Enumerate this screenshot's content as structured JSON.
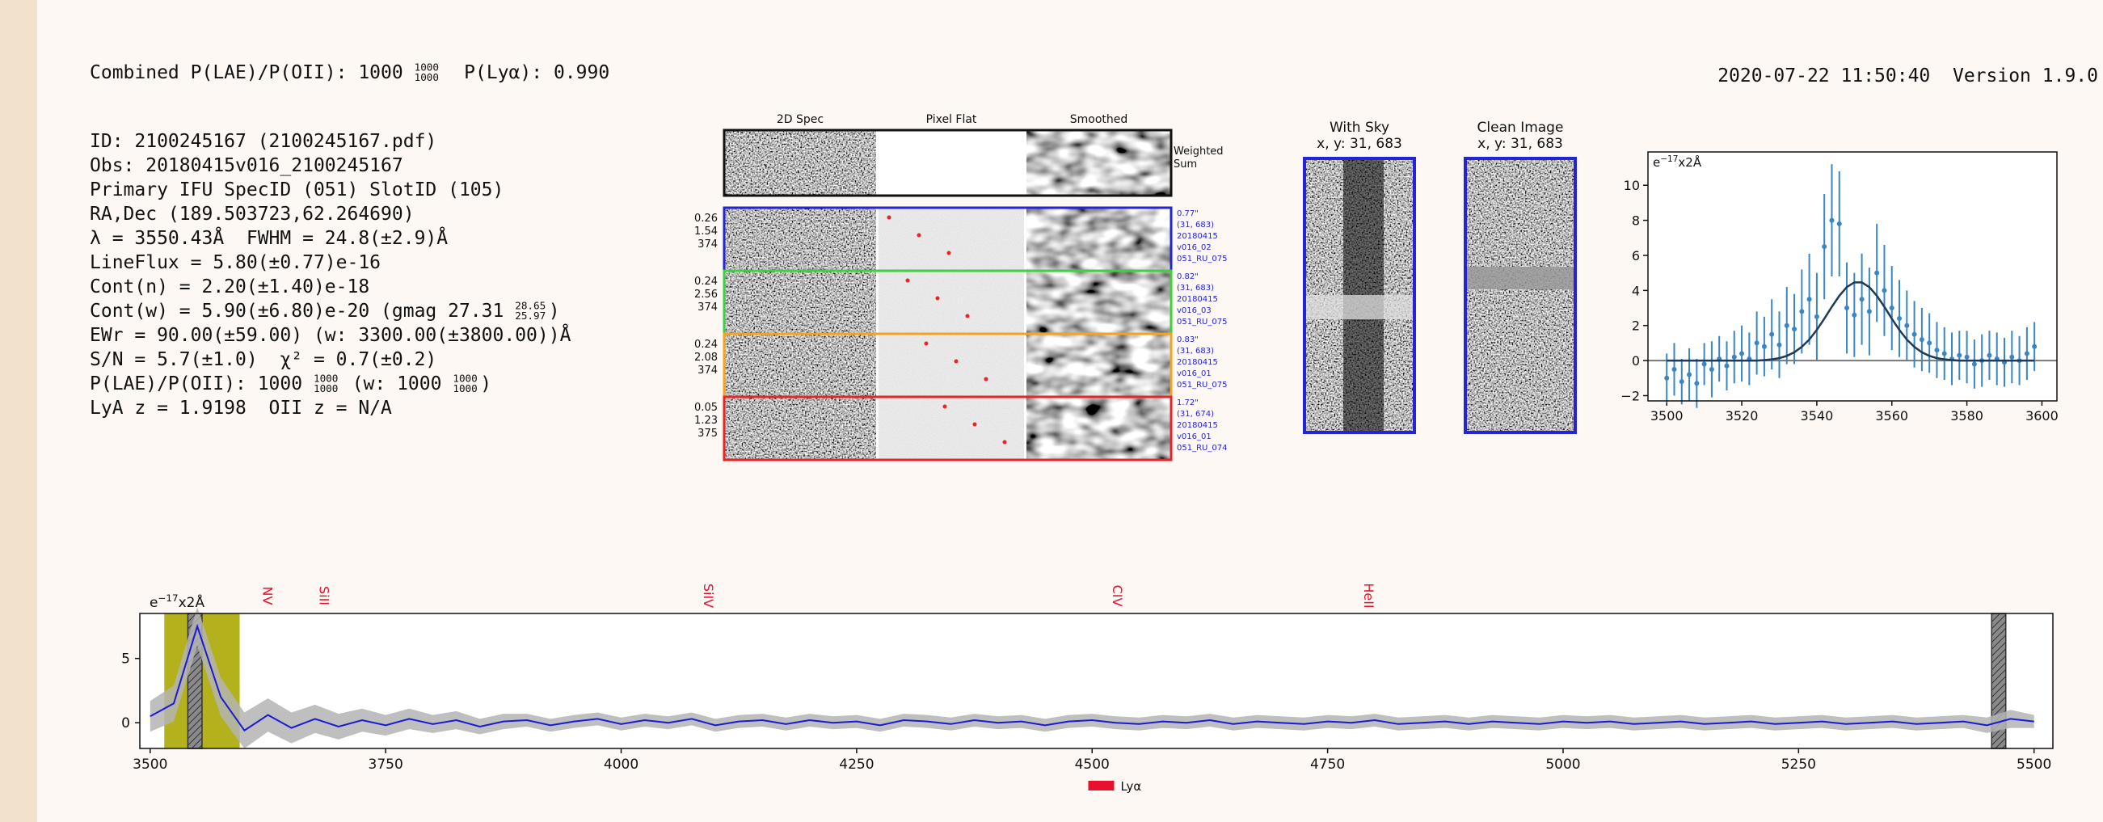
{
  "header": {
    "combined": [
      "Combined P(LAE)/P(OII): 1000 ",
      {
        "top": "1000",
        "bottom": "1000"
      },
      "  P(Lyα): 0.990"
    ],
    "timestamp": "2020-07-22 11:50:40  Version 1.9.0"
  },
  "info": [
    [
      "ID: 2100245167 (2100245167.pdf)"
    ],
    [
      "Obs: 20180415v016_2100245167"
    ],
    [
      "Primary IFU SpecID (051) SlotID (105)"
    ],
    [
      "RA,Dec (189.503723,62.264690)"
    ],
    [
      "λ = 3550.43Å  FWHM = 24.8(±2.9)Å"
    ],
    [
      "LineFlux = 5.80(±0.77)e-16"
    ],
    [
      "Cont(n) = 2.20(±1.40)e-18"
    ],
    [
      "Cont(w) = 5.90(±6.80)e-20 (gmag 27.31 ",
      {
        "top": "28.65",
        "bottom": "25.97"
      },
      ")"
    ],
    [
      "EWr = 90.00(±59.00) (w: 3300.00(±3800.00))Å"
    ],
    [
      "S/N = 5.7(±1.0)  χ² = 0.7(±0.2)"
    ],
    [
      "P(LAE)/P(OII): 1000 ",
      {
        "top": "1000",
        "bottom": "1000"
      },
      " (w: 1000 ",
      {
        "top": "1000",
        "bottom": "1000"
      },
      ")"
    ],
    [
      "LyA z = 1.9198  OII z = N/A"
    ]
  ],
  "cutouts": {
    "columns": [
      "2D Spec",
      "Pixel Flat",
      "Smoothed"
    ],
    "weighted": [
      "Weighted",
      "Sum"
    ],
    "rows": [
      {
        "left": [
          "0.26",
          "1.54",
          "374"
        ],
        "right": [
          "0.77\"",
          "(31, 683)",
          "20180415",
          "v016_02",
          "051_RU_075"
        ],
        "color": "#2424d4"
      },
      {
        "left": [
          "0.24",
          "2.56",
          "374"
        ],
        "right": [
          "0.82\"",
          "(31, 683)",
          "20180415",
          "v016_03",
          "051_RU_075"
        ],
        "color": "#3fcf3f"
      },
      {
        "left": [
          "0.24",
          "2.08",
          "374"
        ],
        "right": [
          "0.83\"",
          "(31, 683)",
          "20180415",
          "v016_01",
          "051_RU_075"
        ],
        "color": "#f5a21e"
      },
      {
        "left": [
          "0.05",
          "1.23",
          "375"
        ],
        "right": [
          "1.72\"",
          "(31, 674)",
          "20180415",
          "v016_01",
          "051_RU_074"
        ],
        "color": "#e82424"
      }
    ],
    "sky": {
      "title": "With Sky",
      "coords": "x, y: 31, 683"
    },
    "clean": {
      "title": "Clean Image",
      "coords": "x, y: 31, 683"
    }
  },
  "chart_data": [
    {
      "type": "errorbar",
      "ylabel": [
        "e",
        "−17",
        "x2Å"
      ],
      "color": "#3a86c4",
      "x": [
        3500,
        3502,
        3504,
        3506,
        3508,
        3510,
        3512,
        3514,
        3516,
        3518,
        3520,
        3522,
        3524,
        3526,
        3528,
        3530,
        3532,
        3534,
        3536,
        3538,
        3540,
        3542,
        3544,
        3546,
        3548,
        3550,
        3552,
        3554,
        3556,
        3558,
        3560,
        3562,
        3564,
        3566,
        3568,
        3570,
        3572,
        3574,
        3576,
        3578,
        3580,
        3582,
        3584,
        3586,
        3588,
        3590,
        3592,
        3594,
        3596,
        3598
      ],
      "values": [
        -1.0,
        -0.5,
        -1.2,
        -0.8,
        -1.3,
        -0.2,
        -0.5,
        0.1,
        -0.3,
        0.2,
        0.4,
        0.1,
        1.0,
        0.8,
        1.5,
        0.9,
        2.0,
        1.8,
        2.8,
        3.5,
        2.5,
        6.5,
        8.0,
        7.8,
        3.0,
        2.6,
        3.5,
        2.8,
        5.0,
        4.0,
        3.0,
        2.4,
        2.0,
        1.5,
        1.2,
        1.0,
        0.6,
        0.4,
        0.1,
        0.3,
        0.2,
        -0.2,
        0.0,
        0.3,
        0.1,
        -0.1,
        0.2,
        0.0,
        0.4,
        0.8
      ],
      "errors": [
        1.4,
        1.5,
        1.3,
        1.5,
        1.4,
        1.2,
        1.6,
        1.3,
        1.4,
        1.5,
        1.6,
        1.5,
        1.8,
        1.7,
        2.0,
        1.9,
        2.2,
        2.0,
        2.4,
        2.6,
        2.5,
        3.0,
        3.2,
        3.0,
        2.6,
        2.4,
        2.6,
        2.5,
        2.8,
        2.6,
        2.4,
        2.2,
        2.0,
        1.9,
        1.8,
        1.7,
        1.6,
        1.5,
        1.5,
        1.4,
        1.5,
        1.4,
        1.5,
        1.4,
        1.5,
        1.4,
        1.5,
        1.4,
        1.5,
        1.4
      ],
      "fit": {
        "color": "#1f3a56",
        "values": [
          0,
          0,
          0,
          0,
          0,
          0,
          0,
          0,
          0,
          0,
          0,
          0,
          0,
          0.03,
          0.07,
          0.14,
          0.27,
          0.47,
          0.78,
          1.2,
          1.75,
          2.39,
          3.07,
          3.7,
          4.19,
          4.46,
          4.46,
          4.19,
          3.7,
          3.07,
          2.39,
          1.75,
          1.2,
          0.78,
          0.47,
          0.27,
          0.14,
          0.07,
          0.03,
          0,
          0,
          0,
          0,
          0,
          0,
          0,
          0,
          0,
          0,
          0
        ]
      },
      "hline": 0,
      "xlim": [
        3495,
        3604
      ],
      "ylim": [
        -2.3,
        11.9
      ],
      "xticks": [
        3500,
        3520,
        3540,
        3560,
        3580,
        3600
      ],
      "yticks": [
        {
          "value": -2,
          "label": "−2"
        },
        0,
        2,
        4,
        6,
        8,
        10
      ]
    },
    {
      "type": "line",
      "ylabel": [
        "e",
        "−17",
        "x2Å"
      ],
      "color": "#1a1ad6",
      "band_color": "#b4b4b4",
      "x": [
        3500,
        3525,
        3550,
        3575,
        3600,
        3625,
        3650,
        3675,
        3700,
        3725,
        3750,
        3775,
        3800,
        3825,
        3850,
        3875,
        3900,
        3925,
        3950,
        3975,
        4000,
        4025,
        4050,
        4075,
        4100,
        4125,
        4150,
        4175,
        4200,
        4225,
        4250,
        4275,
        4300,
        4325,
        4350,
        4375,
        4400,
        4425,
        4450,
        4475,
        4500,
        4525,
        4550,
        4575,
        4600,
        4625,
        4650,
        4675,
        4700,
        4725,
        4750,
        4775,
        4800,
        4825,
        4850,
        4875,
        4900,
        4925,
        4950,
        4975,
        5000,
        5025,
        5050,
        5075,
        5100,
        5125,
        5150,
        5175,
        5200,
        5225,
        5250,
        5275,
        5300,
        5325,
        5350,
        5375,
        5400,
        5425,
        5450,
        5475,
        5500
      ],
      "values": [
        0.5,
        1.5,
        7.5,
        2.0,
        -0.6,
        0.6,
        -0.4,
        0.3,
        -0.3,
        0.2,
        -0.2,
        0.3,
        -0.1,
        0.2,
        -0.3,
        0.1,
        0.2,
        -0.2,
        0.1,
        0.3,
        -0.1,
        0.2,
        0.0,
        0.3,
        -0.2,
        0.1,
        0.2,
        -0.1,
        0.2,
        0.0,
        0.1,
        -0.2,
        0.2,
        0.1,
        -0.1,
        0.2,
        0.0,
        0.1,
        -0.2,
        0.1,
        0.2,
        0.0,
        -0.1,
        0.1,
        0.0,
        0.2,
        -0.1,
        0.1,
        0.0,
        -0.1,
        0.1,
        0.0,
        0.2,
        -0.1,
        0.0,
        0.1,
        -0.1,
        0.1,
        0.0,
        -0.1,
        0.1,
        0.0,
        0.1,
        -0.1,
        0.0,
        0.1,
        -0.1,
        0.0,
        0.1,
        -0.1,
        0.0,
        0.1,
        -0.1,
        0.0,
        0.1,
        -0.1,
        0.0,
        0.1,
        -0.2,
        0.3,
        0.1
      ],
      "errors": [
        1.2,
        1.4,
        1.5,
        1.5,
        1.4,
        1.3,
        1.2,
        1.1,
        1.0,
        0.9,
        0.8,
        0.8,
        0.7,
        0.7,
        0.6,
        0.6,
        0.5,
        0.5,
        0.5,
        0.5,
        0.5,
        0.5,
        0.5,
        0.5,
        0.5,
        0.5,
        0.5,
        0.5,
        0.5,
        0.5,
        0.5,
        0.5,
        0.5,
        0.5,
        0.5,
        0.5,
        0.5,
        0.5,
        0.5,
        0.5,
        0.5,
        0.5,
        0.5,
        0.5,
        0.5,
        0.5,
        0.5,
        0.5,
        0.5,
        0.5,
        0.5,
        0.5,
        0.5,
        0.5,
        0.5,
        0.5,
        0.5,
        0.5,
        0.5,
        0.5,
        0.5,
        0.5,
        0.5,
        0.5,
        0.5,
        0.5,
        0.5,
        0.5,
        0.5,
        0.5,
        0.5,
        0.5,
        0.5,
        0.5,
        0.5,
        0.5,
        0.5,
        0.5,
        0.6,
        0.7,
        0.5
      ],
      "highlights": [
        {
          "range": [
            3515,
            3595
          ],
          "color": "#b3b21d"
        }
      ],
      "masks": [
        [
          3540,
          3555
        ],
        [
          5455,
          5470
        ]
      ],
      "lines": [
        {
          "label": "NV",
          "x": 3620
        },
        {
          "label": "SiII",
          "x": 3680
        },
        {
          "label": "SiIV",
          "x": 4088
        },
        {
          "label": "CIV",
          "x": 4522
        },
        {
          "label": "HeII",
          "x": 4789
        }
      ],
      "line_label_color": "#e8102c",
      "legend": {
        "label": "Lyα",
        "color": "#e8102c"
      },
      "xlim": [
        3489,
        5520
      ],
      "ylim": [
        -2.0,
        8.5
      ],
      "xticks": [
        3500,
        3750,
        4000,
        4250,
        4500,
        4750,
        5000,
        5250,
        5500
      ],
      "yticks": [
        0,
        5
      ]
    }
  ]
}
